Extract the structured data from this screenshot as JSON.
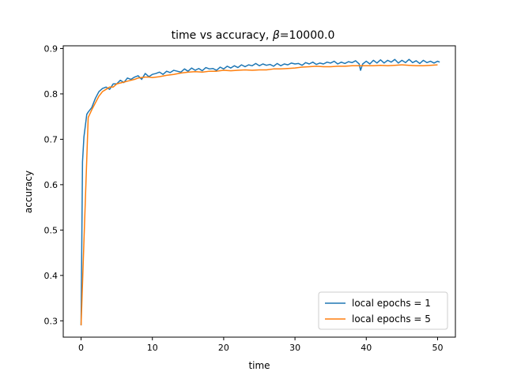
{
  "chart_data": {
    "type": "line",
    "title": "time vs accuracy, β=10000.0",
    "title_prefix": "time vs accuracy, ",
    "title_symbol": "β",
    "title_suffix": "=10000.0",
    "xlabel": "time",
    "ylabel": "accuracy",
    "xlim": [
      -2.5,
      52.5
    ],
    "ylim": [
      0.264,
      0.906
    ],
    "xticks": [
      0,
      10,
      20,
      30,
      40,
      50
    ],
    "yticks": [
      0.3,
      0.4,
      0.5,
      0.6,
      0.7,
      0.8,
      0.9
    ],
    "xtick_labels": [
      "0",
      "10",
      "20",
      "30",
      "40",
      "50"
    ],
    "ytick_labels": [
      "0.3",
      "0.4",
      "0.5",
      "0.6",
      "0.7",
      "0.8",
      "0.9"
    ],
    "grid": false,
    "legend_position": "lower-right",
    "series": [
      {
        "name": "local epochs = 1",
        "color": "#1f77b4",
        "x": [
          0,
          0.2,
          0.4,
          0.6,
          0.8,
          1.0,
          1.5,
          2.0,
          2.5,
          3.0,
          3.5,
          4.0,
          4.5,
          5.0,
          5.5,
          6.0,
          6.5,
          7.0,
          7.5,
          8.0,
          8.5,
          9.0,
          9.5,
          10,
          10.5,
          11,
          11.5,
          12,
          12.5,
          13,
          13.5,
          14,
          14.5,
          15,
          15.5,
          16,
          16.5,
          17,
          17.5,
          18,
          18.5,
          19,
          19.5,
          20,
          20.5,
          21,
          21.5,
          22,
          22.5,
          23,
          23.5,
          24,
          24.5,
          25,
          25.5,
          26,
          26.5,
          27,
          27.5,
          28,
          28.5,
          29,
          29.5,
          30,
          30.5,
          31,
          31.5,
          32,
          32.5,
          33,
          33.5,
          34,
          34.5,
          35,
          35.5,
          36,
          36.5,
          37,
          37.5,
          38,
          38.5,
          39,
          39.2,
          39.5,
          40,
          40.5,
          41,
          41.5,
          42,
          42.5,
          43,
          43.5,
          44,
          44.5,
          45,
          45.5,
          46,
          46.5,
          47,
          47.5,
          48,
          48.5,
          49,
          49.5,
          50,
          50.3
        ],
        "y": [
          0.29,
          0.65,
          0.705,
          0.73,
          0.755,
          0.76,
          0.77,
          0.79,
          0.805,
          0.812,
          0.815,
          0.81,
          0.822,
          0.822,
          0.83,
          0.825,
          0.835,
          0.832,
          0.837,
          0.84,
          0.832,
          0.845,
          0.838,
          0.843,
          0.845,
          0.848,
          0.843,
          0.85,
          0.847,
          0.852,
          0.85,
          0.848,
          0.855,
          0.85,
          0.857,
          0.852,
          0.856,
          0.851,
          0.858,
          0.855,
          0.856,
          0.852,
          0.859,
          0.855,
          0.861,
          0.857,
          0.862,
          0.858,
          0.864,
          0.86,
          0.864,
          0.862,
          0.867,
          0.862,
          0.866,
          0.863,
          0.865,
          0.861,
          0.867,
          0.862,
          0.866,
          0.864,
          0.868,
          0.866,
          0.867,
          0.863,
          0.869,
          0.866,
          0.87,
          0.865,
          0.868,
          0.866,
          0.87,
          0.868,
          0.872,
          0.866,
          0.87,
          0.867,
          0.871,
          0.869,
          0.873,
          0.866,
          0.852,
          0.866,
          0.872,
          0.866,
          0.874,
          0.868,
          0.875,
          0.868,
          0.874,
          0.87,
          0.876,
          0.868,
          0.874,
          0.869,
          0.876,
          0.869,
          0.873,
          0.867,
          0.874,
          0.869,
          0.872,
          0.868,
          0.872,
          0.87
        ]
      },
      {
        "name": "local epochs = 5",
        "color": "#ff7f0e",
        "x": [
          0,
          0.5,
          1.0,
          1.5,
          2.0,
          2.5,
          3.0,
          3.5,
          4.0,
          4.5,
          5.0,
          5.5,
          6.0,
          6.5,
          7.0,
          7.5,
          8.0,
          8.5,
          9.0,
          9.5,
          10,
          11,
          12,
          13,
          14,
          15,
          16,
          17,
          18,
          19,
          20,
          21,
          22,
          23,
          24,
          25,
          26,
          27,
          28,
          29,
          30,
          31,
          32,
          33,
          34,
          35,
          36,
          37,
          38,
          39,
          40,
          41,
          42,
          43,
          44,
          45,
          46,
          47,
          48,
          49,
          50
        ],
        "y": [
          0.29,
          0.52,
          0.748,
          0.765,
          0.78,
          0.795,
          0.805,
          0.81,
          0.815,
          0.815,
          0.822,
          0.824,
          0.826,
          0.828,
          0.83,
          0.832,
          0.835,
          0.836,
          0.837,
          0.837,
          0.836,
          0.838,
          0.841,
          0.843,
          0.846,
          0.848,
          0.849,
          0.848,
          0.85,
          0.85,
          0.852,
          0.851,
          0.852,
          0.853,
          0.852,
          0.853,
          0.853,
          0.855,
          0.855,
          0.856,
          0.857,
          0.859,
          0.86,
          0.861,
          0.86,
          0.86,
          0.861,
          0.861,
          0.862,
          0.862,
          0.862,
          0.862,
          0.863,
          0.862,
          0.863,
          0.864,
          0.863,
          0.862,
          0.862,
          0.863,
          0.864
        ]
      }
    ]
  }
}
